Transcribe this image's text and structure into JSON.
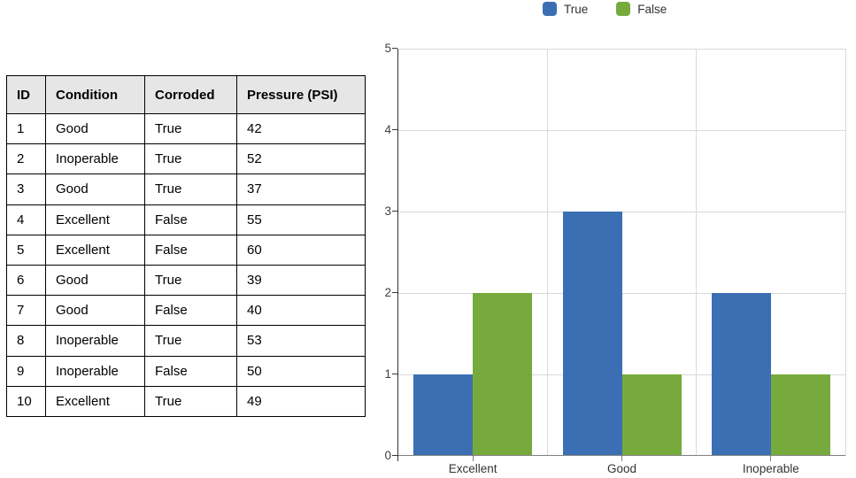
{
  "table": {
    "headers": [
      "ID",
      "Condition",
      "Corroded",
      "Pressure (PSI)"
    ],
    "rows": [
      [
        "1",
        "Good",
        "True",
        "42"
      ],
      [
        "2",
        "Inoperable",
        "True",
        "52"
      ],
      [
        "3",
        "Good",
        "True",
        "37"
      ],
      [
        "4",
        "Excellent",
        "False",
        "55"
      ],
      [
        "5",
        "Excellent",
        "False",
        "60"
      ],
      [
        "6",
        "Good",
        "True",
        "39"
      ],
      [
        "7",
        "Good",
        "False",
        "40"
      ],
      [
        "8",
        "Inoperable",
        "True",
        "53"
      ],
      [
        "9",
        "Inoperable",
        "False",
        "50"
      ],
      [
        "10",
        "Excellent",
        "True",
        "49"
      ]
    ],
    "header_bg": "#e7e6e6"
  },
  "chart_data": {
    "type": "bar",
    "categories": [
      "Excellent",
      "Good",
      "Inoperable"
    ],
    "series": [
      {
        "name": "True",
        "color": "#3C6EB4",
        "values": [
          1,
          3,
          2
        ]
      },
      {
        "name": "False",
        "color": "#76AA3C",
        "values": [
          2,
          1,
          1
        ]
      }
    ],
    "ylim": [
      0,
      5
    ],
    "yticks": [
      0,
      1,
      2,
      3,
      4,
      5
    ],
    "grid": true,
    "legend_position": "top",
    "gridline_color": "#d9d9d9",
    "x_axis_color": "#808080",
    "y_axis_color": "#333333",
    "tick_label_color": "#404040"
  }
}
